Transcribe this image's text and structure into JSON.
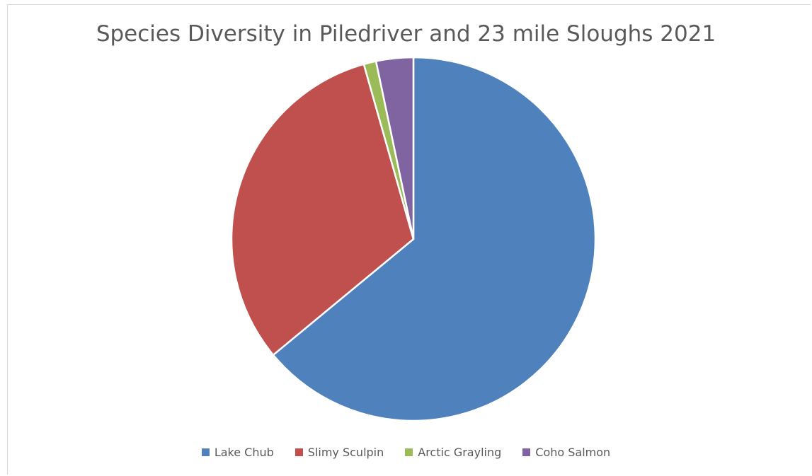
{
  "chart_data": {
    "type": "pie",
    "title": "Species Diversity in Piledriver and 23 mile Sloughs 2021",
    "categories": [
      "Lake Chub",
      "Slimy Sculpin",
      "Arctic Grayling",
      "Coho Salmon"
    ],
    "values": [
      64.0,
      31.6,
      1.1,
      3.3
    ],
    "colors": [
      "#4f81bd",
      "#c0504d",
      "#9bbb59",
      "#8064a2"
    ],
    "legend_position": "bottom"
  }
}
